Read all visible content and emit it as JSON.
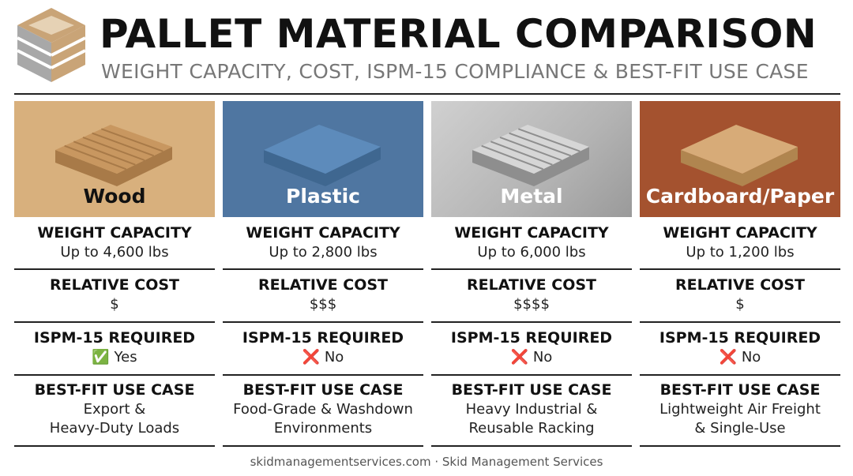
{
  "header": {
    "title": "PALLET MATERIAL COMPARISON",
    "subtitle": "WEIGHT CAPACITY, COST, ISPM-15 COMPLIANCE & BEST-FIT USE CASE"
  },
  "columns": [
    {
      "name": "Wood",
      "color": "#d8b07d",
      "name_color": "#111111",
      "sections": [
        {
          "label": "WEIGHT CAPACITY",
          "lines": [
            "Up to 4,600 lbs"
          ]
        },
        {
          "label": "RELATIVE COST",
          "lines": [
            "$"
          ]
        },
        {
          "label": "ISPM-15 REQUIRED",
          "lines": [
            "✅ Yes"
          ]
        },
        {
          "label": "BEST-FIT USE CASE",
          "lines": [
            "Export &",
            "Heavy-Duty Loads"
          ]
        }
      ]
    },
    {
      "name": "Plastic",
      "color": "#4f76a1",
      "name_color": "#ffffff",
      "sections": [
        {
          "label": "WEIGHT CAPACITY",
          "lines": [
            "Up to 2,800 lbs"
          ]
        },
        {
          "label": "RELATIVE COST",
          "lines": [
            "$$$"
          ]
        },
        {
          "label": "ISPM-15 REQUIRED",
          "lines": [
            "❌ No"
          ]
        },
        {
          "label": "BEST-FIT USE CASE",
          "lines": [
            "Food-Grade & Washdown",
            "Environments"
          ]
        }
      ]
    },
    {
      "name": "Metal",
      "color": "#b4b4b4",
      "name_color": "#ffffff",
      "sections": [
        {
          "label": "WEIGHT CAPACITY",
          "lines": [
            "Up to 6,000 lbs"
          ]
        },
        {
          "label": "RELATIVE COST",
          "lines": [
            "$$$$"
          ]
        },
        {
          "label": "ISPM-15 REQUIRED",
          "lines": [
            "❌ No"
          ]
        },
        {
          "label": "BEST-FIT USE CASE",
          "lines": [
            "Heavy Industrial &",
            "Reusable Racking"
          ]
        }
      ]
    },
    {
      "name": "Cardboard/Paper",
      "color": "#a4522f",
      "name_color": "#ffffff",
      "sections": [
        {
          "label": "WEIGHT CAPACITY",
          "lines": [
            "Up to 1,200 lbs"
          ]
        },
        {
          "label": "RELATIVE COST",
          "lines": [
            "$"
          ]
        },
        {
          "label": "ISPM-15 REQUIRED",
          "lines": [
            "❌ No"
          ]
        },
        {
          "label": "BEST-FIT USE CASE",
          "lines": [
            "Lightweight Air Freight",
            "& Single-Use"
          ]
        }
      ]
    }
  ],
  "footer": "skidmanagementservices.com · Skid Management Services"
}
